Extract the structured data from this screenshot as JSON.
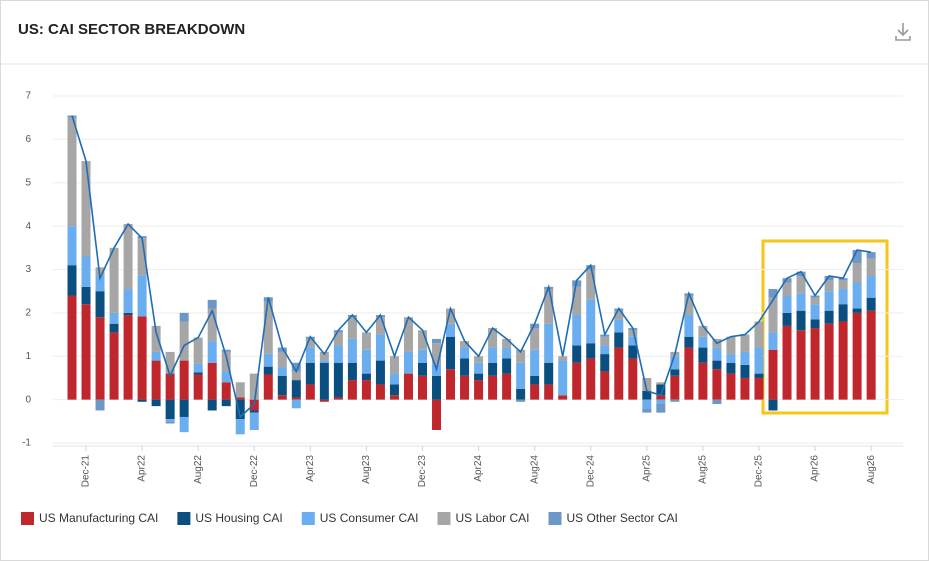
{
  "chart_data": {
    "type": "stacked_bar_line",
    "title": "US: CAI SECTOR BREAKDOWN",
    "categories": [
      null,
      "Dec-21",
      null,
      null,
      null,
      "Apr22",
      null,
      null,
      null,
      "Aug22",
      null,
      null,
      null,
      "Dec-22",
      null,
      null,
      null,
      "Apr23",
      null,
      null,
      null,
      "Aug23",
      null,
      null,
      null,
      "Dec-23",
      null,
      null,
      null,
      "Apr24",
      null,
      null,
      null,
      "Aug24",
      null,
      null,
      null,
      "Dec-24",
      null,
      null,
      null,
      "Apr25",
      null,
      null,
      null,
      "Aug25",
      null,
      null,
      null,
      "Dec-25",
      null,
      null,
      null,
      "Apr26",
      null,
      null,
      null,
      "Aug26"
    ],
    "series": [
      {
        "name": "US Manufacturing CAI",
        "color": "#c0272d",
        "values": [
          2.4,
          2.2,
          1.9,
          1.55,
          1.95,
          1.92,
          0.9,
          0.6,
          0.9,
          0.58,
          0.85,
          0.4,
          0.05,
          -0.25,
          0.58,
          0.1,
          0.05,
          0.35,
          -0.05,
          0.05,
          0.45,
          0.45,
          0.35,
          0.1,
          0.6,
          0.55,
          -0.7,
          0.7,
          0.55,
          0.45,
          0.55,
          0.6,
          0.0,
          0.35,
          0.35,
          0.1,
          0.85,
          0.95,
          0.65,
          1.2,
          0.95,
          0.0,
          0.1,
          0.55,
          1.2,
          0.85,
          0.7,
          0.6,
          0.5,
          0.5,
          1.15,
          1.7,
          1.6,
          1.65,
          1.75,
          1.8,
          2.0,
          2.05
        ]
      },
      {
        "name": "US Housing CAI",
        "color": "#0b4f80",
        "values": [
          0.7,
          0.4,
          0.6,
          0.2,
          0.05,
          -0.05,
          -0.15,
          -0.45,
          -0.4,
          0.05,
          -0.25,
          -0.15,
          -0.45,
          -0.05,
          0.18,
          0.45,
          0.4,
          0.5,
          0.85,
          0.8,
          0.4,
          0.15,
          0.55,
          0.25,
          0.0,
          0.3,
          0.55,
          0.75,
          0.4,
          0.15,
          0.3,
          0.35,
          0.25,
          0.2,
          0.5,
          0.0,
          0.4,
          0.35,
          0.4,
          0.35,
          0.3,
          0.2,
          0.25,
          0.15,
          0.25,
          0.35,
          0.2,
          0.25,
          0.3,
          0.1,
          -0.25,
          0.3,
          0.45,
          0.2,
          0.3,
          0.4,
          0.1,
          0.3
        ]
      },
      {
        "name": "US Consumer CAI",
        "color": "#6aaef0",
        "values": [
          0.9,
          0.7,
          0.35,
          0.25,
          0.55,
          0.95,
          0.2,
          -0.05,
          -0.35,
          0.2,
          0.5,
          0.25,
          -0.35,
          -0.4,
          0.3,
          0.2,
          -0.2,
          0.35,
          0.05,
          0.4,
          0.55,
          0.55,
          0.6,
          0.25,
          0.5,
          0.3,
          0.25,
          0.3,
          0.25,
          0.25,
          0.35,
          0.25,
          0.6,
          0.6,
          0.9,
          0.8,
          0.7,
          1.0,
          0.2,
          0.3,
          0.2,
          -0.2,
          -0.1,
          0.3,
          0.5,
          0.25,
          0.3,
          0.2,
          0.3,
          0.6,
          0.4,
          0.4,
          0.4,
          0.35,
          0.45,
          0.35,
          0.6,
          0.5
        ]
      },
      {
        "name": "US Labor CAI",
        "color": "#a6a6a6",
        "values": [
          2.5,
          2.2,
          0.2,
          1.5,
          1.5,
          0.85,
          0.6,
          0.5,
          0.9,
          0.6,
          0.75,
          0.45,
          0.35,
          0.6,
          1.2,
          0.35,
          0.2,
          0.2,
          0.2,
          0.3,
          0.5,
          0.4,
          0.4,
          0.4,
          0.8,
          0.45,
          0.5,
          0.35,
          0.15,
          0.15,
          0.45,
          0.2,
          0.3,
          0.5,
          0.8,
          0.1,
          0.65,
          0.7,
          0.2,
          0.2,
          0.15,
          0.3,
          0.05,
          0.1,
          0.45,
          0.25,
          0.2,
          0.4,
          0.4,
          0.6,
          0.8,
          0.3,
          0.4,
          0.15,
          0.25,
          0.2,
          0.45,
          0.4
        ]
      },
      {
        "name": "US Other Sector CAI",
        "color": "#6d97c4",
        "values": [
          0.05,
          0.0,
          -0.25,
          0.0,
          0.0,
          0.05,
          0.0,
          -0.05,
          0.2,
          0.0,
          0.2,
          0.05,
          0.0,
          0.0,
          0.1,
          0.1,
          0.2,
          0.05,
          0.0,
          0.05,
          0.05,
          0.0,
          0.05,
          0.0,
          0.0,
          0.0,
          0.1,
          0.0,
          0.0,
          0.0,
          0.0,
          0.0,
          -0.05,
          0.1,
          0.05,
          0.0,
          0.15,
          0.1,
          0.05,
          0.05,
          0.05,
          -0.1,
          -0.2,
          -0.05,
          0.05,
          0.0,
          -0.1,
          0.0,
          0.0,
          0.0,
          0.2,
          0.1,
          0.1,
          0.05,
          0.1,
          0.05,
          0.3,
          0.15
        ]
      }
    ],
    "line_color": "#1f6db5",
    "ylim": [
      -1,
      7
    ],
    "yticks": [
      -1,
      0,
      1,
      2,
      3,
      4,
      5,
      6,
      7
    ],
    "grid": true
  }
}
